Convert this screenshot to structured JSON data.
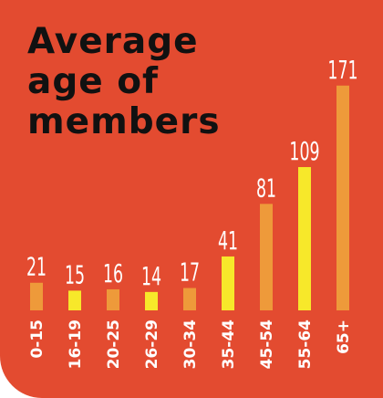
{
  "chart_data": {
    "type": "bar",
    "title_lines": [
      "Average",
      "age of",
      "members"
    ],
    "categories": [
      "0-15",
      "16-19",
      "20-25",
      "26-29",
      "30-34",
      "35-44",
      "45-54",
      "55-64",
      "65+"
    ],
    "values": [
      21,
      15,
      16,
      14,
      17,
      41,
      81,
      109,
      171
    ],
    "bar_colors": [
      "#ee9a3a",
      "#f7e82a",
      "#ee9a3a",
      "#f7e82a",
      "#ee9a3a",
      "#f7e82a",
      "#ee9a3a",
      "#f7e82a",
      "#ee9a3a"
    ],
    "xlabel": "",
    "ylabel": "",
    "grid": false,
    "legend": "none"
  },
  "colors": {
    "background": "#e34b30",
    "title": "#111111",
    "labels": "#ffffff"
  }
}
